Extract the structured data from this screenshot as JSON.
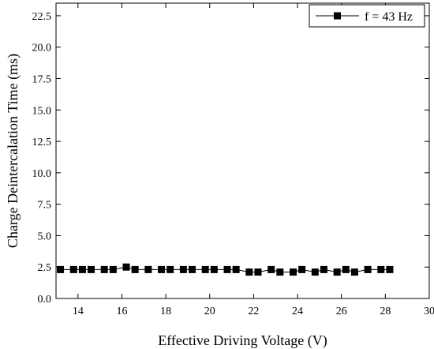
{
  "chart_data": {
    "type": "line",
    "title": "",
    "xlabel": "Effective Driving Voltage (V)",
    "ylabel": "Charge Deintercalation Time (ms)",
    "xlim": [
      13,
      30
    ],
    "ylim": [
      0,
      23.5
    ],
    "xticks": [
      14,
      16,
      18,
      20,
      22,
      24,
      26,
      28,
      30
    ],
    "yticks": [
      0.0,
      2.5,
      5.0,
      7.5,
      10.0,
      12.5,
      15.0,
      17.5,
      20.0,
      22.5
    ],
    "xtick_labels": [
      "14",
      "16",
      "18",
      "20",
      "22",
      "24",
      "26",
      "28",
      "30"
    ],
    "ytick_labels": [
      "0.0",
      "2.5",
      "5.0",
      "7.5",
      "10.0",
      "12.5",
      "15.0",
      "17.5",
      "20.0",
      "22.5"
    ],
    "grid": false,
    "legend": "top-right",
    "series": [
      {
        "name": "f = 43 Hz",
        "color": "#000000",
        "marker": "square",
        "x": [
          13.2,
          13.8,
          14.2,
          14.6,
          15.2,
          15.6,
          16.2,
          16.6,
          17.2,
          17.8,
          18.2,
          18.8,
          19.2,
          19.8,
          20.2,
          20.8,
          21.2,
          21.8,
          22.2,
          22.8,
          23.2,
          23.8,
          24.2,
          24.8,
          25.2,
          25.8,
          26.2,
          26.6,
          27.2,
          27.8,
          28.2
        ],
        "y": [
          2.3,
          2.3,
          2.3,
          2.3,
          2.3,
          2.3,
          2.5,
          2.3,
          2.3,
          2.3,
          2.3,
          2.3,
          2.3,
          2.3,
          2.3,
          2.3,
          2.3,
          2.1,
          2.1,
          2.3,
          2.1,
          2.1,
          2.3,
          2.1,
          2.3,
          2.1,
          2.3,
          2.1,
          2.3,
          2.3,
          2.3
        ]
      }
    ]
  }
}
